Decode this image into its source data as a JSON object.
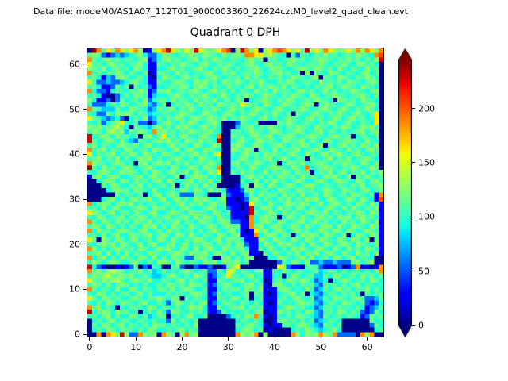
{
  "header": {
    "data_file_label": "Data file: modeM0/AS1A07_112T01_9000003360_22624cztM0_level2_quad_clean.evt"
  },
  "chart_data": {
    "type": "heatmap",
    "title": "Quadrant 0 DPH",
    "xlabel": "",
    "ylabel": "",
    "x_ticks": [
      0,
      10,
      20,
      30,
      40,
      50,
      60
    ],
    "y_ticks": [
      0,
      10,
      20,
      30,
      40,
      50,
      60
    ],
    "x_range": [
      -0.5,
      63.5
    ],
    "y_range": [
      -0.5,
      63.5
    ],
    "grid_size": [
      64,
      64
    ],
    "colormap": "jet",
    "vmin": 0,
    "vmax": 245,
    "colorbar": {
      "ticks": [
        0,
        50,
        100,
        150,
        200
      ],
      "extend": "both",
      "under_color": "#000080",
      "over_color": "#800000"
    },
    "value_levels": {
      "N": 2,
      "B": 30,
      "b": 56,
      "C": 80,
      "c": 94,
      ".": 105,
      "t": 115,
      "g": 127,
      "G": 140,
      "y": 162,
      "o": 186,
      "O": 205,
      "r": 228,
      "R": 242
    },
    "rows_top_to_bottom": [
      "NRotygoygyogNBgyorygtygrygtgyoONgrogyNgyoOoygytrgygoygtgygogoygo",
      "tgtbBbCbCctgcbbcgt.ct.gt.gt.cg.tg.ooyygGt.cN.bt.ct.g.tc.t.gt.coO",
      "otctg.tct.ctgBbctg.tc.tgct.gt.ct.ctg.tN.tc.tg.tc.tgt.ct.g.tct.gr",
      "y.tctg.tc.tgcBBt.ct.gt.ctg.ct.g.c.tg.ctg.tcgt.c.t.g.ct.g.ctg.tcN",
      "gt.gctt..cgtcBBcctg.tc.tg.ct.gtctc.tg.ctgt.c.tgt.gt.tcg.ct.cg.tN",
      "o.tct.gtct.ctNBtt.cg.tc..tg.ct.gc.t.gtc.tg.tc.NgNt.cgt.ct.ctgctN",
      ".tcBCbtgtc.tcBNcgt.ctg.tc.tg.ct.tcg.t.ct.tc.gt.ctgNt.cgt.ct.gt.N",
      "y.bbCbbCctg.cBBt.ctgt.cgtg.tcgt.g.ct.g.cct.gtc.t.cg.t.tcgt.c.gtN",
      ".tcBBbtctNtc.bBcc.t.gtctgtct.cg..ctgct.gt.gct.c.ct.tgc.gt.cgt.cN",
      "ocbbBct.ct.gtBbttgc.t.tg.ctg.tctct.cg.tcg.t.ctg.tc.g.tc..gt.ctgN",
      ".tcBNNbctcgt.BCcc.tg.ct.tg.ctg.ct.gtc.gt.ct.gt.cgtc.tgt.c.tg.ctN",
      "gcBBbNbtc.tcgbcttcg.t.cg.t.gc.tcg.Nc.tg.ct.gtc.t.gt.cNgt.tcgt.cN",
      ".bbbctcgtc.tgCbctNct.gtcg.tcgt.t.ygt.cgtc.gt.ctgtN.gt.c.gtc.tg.N",
      "ot.CCCtccgt.cbCt.tgct.g.ct.g.ctg.tc.gt.ctg.ct.gtc.tg.ctg.ct.gtcN",
      ".cbbtcgtgtct.Ccct.ctgt.c.gt.ctg.ct.gtct.g.ctNt.ctg.ct.g.ctg.ctyN",
      "yt.CbCcbNctcgbCtct.gtctgt.gt.gct.gt.ctgctc.gt.ctg.tc.gtctg.tc.yN",
      ".ctbctgy.ctbbNbctg.ct.gtc.tg.NNNbt.ctNNNNt.gtc.t.ct.gtc.g.ct.cyN",
      "gtg.tgGtcNt.cCtg.tcgtg.ctg.tcNNNC.tgct.gt.ct.gt.cgt.ct.gtc.gtg.N",
      ".gtcgGtgCt.gtcotg.tct.gt.tg.cNN.tc.gt.ctgtc.tgtc.tgct.ctc.tgctgN",
      "rctgtcg.tc.Ntgcty.tcgt.ctg.coNNt.tctg.tgc.tgtc.tgt.ctgt.tNct.ctN",
      "rtc.gtcgcCbt.ctgtg.tcgt.g.tcrNNctg.ctg.t.cgt.tgct.cgtc.tgt.cg.cN",
      ".gct.ctgt.gctgc.ctg.t.cgtc.gtNNtgtc.gtc.tg.ct.gtc.gN.ctg.tcgt.gN",
      "o.tgct.cgtc.tcgt.ctgctg.cgt.cNNgt.gtNt.cgct.tgc.tg.cgt.cg.tctgtN",
      "yct.tgct.gtcgt.cgt.ct.tg.tcgyNN.ctg.tcgtt.ctg.cg.ctg.tg.ctg.ct.N",
      ".tgct.gctc.gtgctc.tg.ctcgt.ctNNc.gtct.tgctg.ct.Nt.ctgct.gc.tg.cN",
      "ogt.ctgtc.Ntgctgtgct.gc.t.gtcNNtgct.gtc.tNcgt.gc.tg.ct.gt.cgtcgN",
      "Rtcg.tctgtc.tg.c.cgtc.gtcgt.oNNct.cgtc.tgt.cgtcoc.tgt.ct.gtc.gtN",
      ".ctgtc.gtg.ctcgtctg.tgcg.cgtyNNtcg.tc.gct.gtcg.tNct.gctgct.gct.g",
      "Btgctgtcc.tgctg.tc.gNctggtc.cNNNNctg.tctcgt.tcg.t.cgtg.cgNt.g.ct",
      "NNctgtcgtcg.tctgcgtc.tgct.gctNNNNtc.gct.g.tc.gtcctg.ctgt.cgtctg.",
      "NNNtcgtcct.gctc.tcgNcg.tcg.tNNNNBctNgtcgtc.gtc.gg.ct.ct.ct.gc.tg",
      "NNNNctgttcgt.cgcc.tcgtcgtcg.tcBBBbtgc.tccgt.cgt.tc.gt.cgt.ctgc.t",
      "NNNNNNtct.ctNctgctg.bbbt.cNNNtbBBBCtcg.ttcg.tcgc.tcgtc.tcgt.ctBo",
      "NNNctgctctg.tgctgctg.tcgtg.ctgBBNBbtgct.ct.gct.gtgc.gtc.gtcg.cBO",
      "octgtctgtgctc.tc.tctgct.gctg.tBBBNByt.cg.ctgt.gtc.gctgtctcgtcg.B",
      ".tcgctgcc.tgtcgttc.ctg.cctgtc.bBBNBrctgtcg.tcgtct.ctg.cgcg.ct.gB",
      "ygtctgcttcg.ctgcctgt.cgtt.cgtctBBBBrtc.gtcg.t.ctgt.gct.ct.gtcgtB",
      ".cgtc.tgct.gtct.tgc.tgcg.gtcg.cBBBNoctgttNcgtcg.ctg.tcgtgctg.tcB",
      "otcgtcg.tcgt.gctc.tgct.cgt.ctgtbbBBoctgtcgtc.tgctg.tc.cg.tcgtcgB",
      ".gtcgtctct.cgtgctcgt.cg.c.gtctgttBBotgc.gtc.gtcg.ctgtcg.cgt.cgtB",
      "ocg.tctgt.ctgc.tcg.tc.tctctg.ctgcBNBytgctg.ctg.tc.gt.gtcgtc.gt.B",
      ".tcgctgccgt.tgctg.cgtcg.ct.cgtctgBBBoctgtcg.Ncgtgtcgt.cgNcgtcgtB",
      "ytNgtcgtctgc.tcgtcg.ct.gg.ctgcgttcBBBgtcgt.cgtcgtcgt.cgtcgtcgNtB",
      ".ctgtgcgtc.gctgcctgctgct.gtct.gcgtbBBcgtcgtg.ctcg.cgtctgtcgt.cgB",
      "ogctctgt.tcgtc.gtg.cgtcgctg.cgt.tgcBBtcg.ctcgtg.ctg.cg.cg.tcgtcB",
      ".tgcgctcgct.cgt.c.tgtcgttgctg.cgctgBBNtcg.ct.gcttgctg.cg.cg.tcgB",
      "octgctcgt.cgtcgctcgt.bbtgtcNNtgctcgtNNNccgt.ctg.gc.tcgtctgct.cNN",
      ".gtctgtcctg.ctcggtcgtct.cgtgcgttgctNNNNNNbtcgtcgbbCbbCbbbtgctgNN",
      "rcbBNNBNBbtNbB.cNN.tbNNbBBbNNB.gyNNNNNNNNygbBBN.t.bBBBbNBboBBNBo",
      "otg.gGgtc.tgctCctc.ctgtc.tbbtcyGct.ctgBBtcg.ct.c.tCct.ctc.tctcgo",
      ".gtgGttgtgc.tcCCctg.ctcgt.Bbctyt.ctgc.BBc.Ncgtc.tCCtcgtc.tcg.tct",
      "yt.gtgGtctgt.gcct.ctgct.ctBBt.cttgc.tcNB.tcgt.gtcbCcNc.gtc.tcgtc",
      ".gtcgctgtc.ctcctcgt.tcgttcBb.tgcc.tgctBNtg.ctct.tCbt.tctctgct.c.",
      "otct.cgccgtct.ctt.gctgtcctBBct.ttcgt.gBBBtgtc.cg.bCtctg.tct.gctc",
      ".cgtctcttc.gctccctct.ctgt.Bbtctcc.tNt.BNBc.tgctNcCbct.ct.tcNtc.t",
      "ytcgt.tcctg.cttgtcgtNtct.cBBt.cgtctNctBBB.tctg.ctbCtcgt.ctg.bbCt",
      ".ctcgtcgt.ctgcctcb.gtctctgBbctt.ct.ctcBNBtc.ctgt.Cbct.cgt.ctbBbc",
      "otgctcN.ctt.cgtct.ctc.gtgcBBtc.ttgct.tBBBctgt.tccbCt.ct..ctcBbCt",
      "rctgtcgttc.Nctcgcbgt.ct.tcBBbtc.c.tctgNBBg.tctcgtCb.tcgtct.bBbtc",
      ".tctgctccgtctCcttNctctgcctNNNNbctcgto.BNB.ctcgt.cCbtc.tct.cBbt.t",
      "Nctctgcttcct.ctccbgct.ctNNNNNNNNct.ctcNNBtg.tctctbCct.cNNNNNNtc.",
      "Ntcgtctgct.ctcgttct.ctcgNNNNNNNNtctg.cBNBB.tctgtcCbt.ctNNNNNNbtc",
      "Nctcgtctt.ctcgtcctctgct.NNNNNNNNctgtctNBNNNNctcgtcCctgcNNNNNNNct",
      "NNoNoygrgbbogtgNogtNgotgNNNNNNNNogtgoNgNNNNNogcgtgogtobbbbNogoNN"
    ]
  }
}
